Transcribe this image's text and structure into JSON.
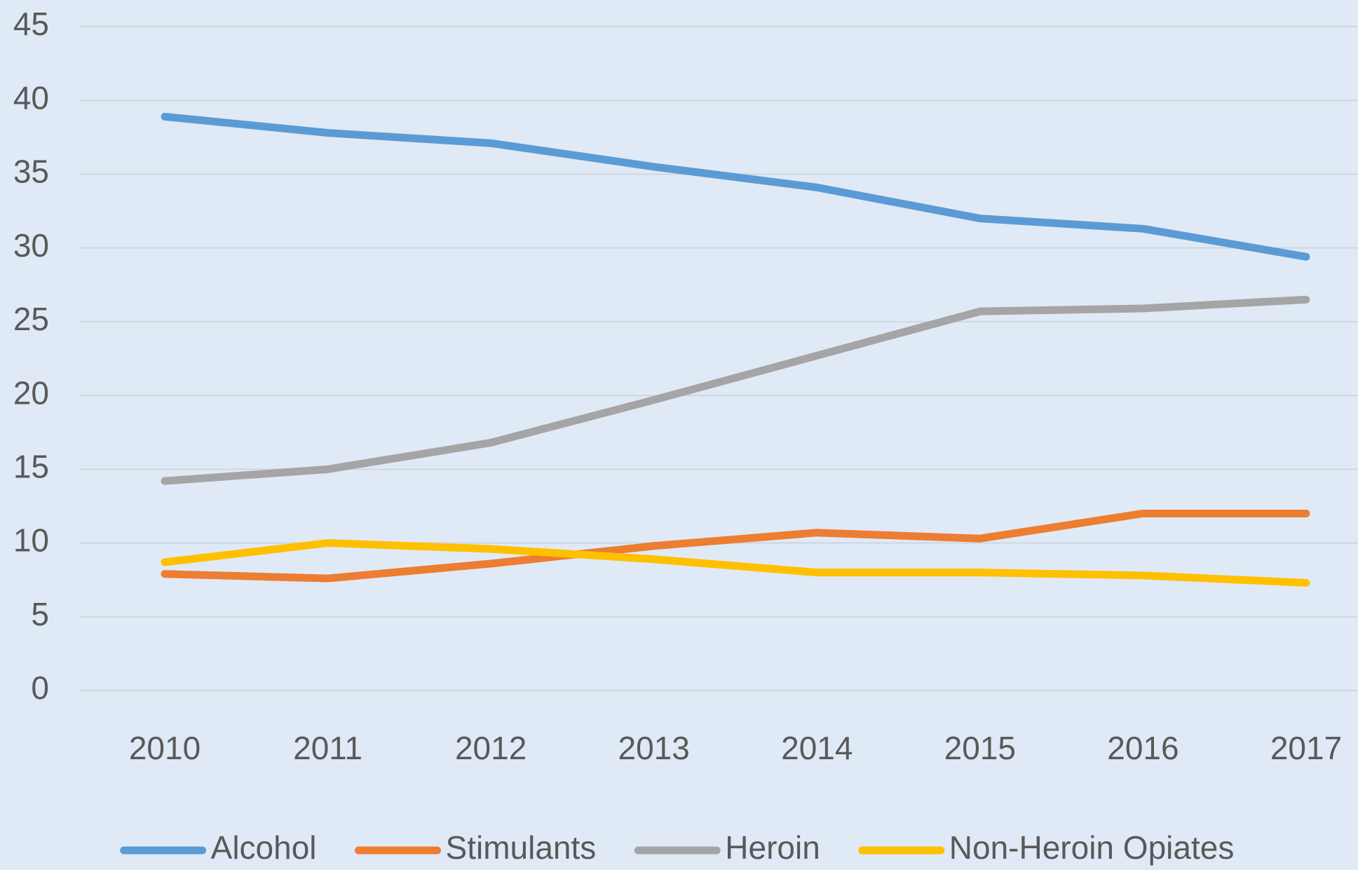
{
  "chart_data": {
    "type": "line",
    "categories": [
      "2010",
      "2011",
      "2012",
      "2013",
      "2014",
      "2015",
      "2016",
      "2017"
    ],
    "series": [
      {
        "name": "Alcohol",
        "color": "#5b9bd5",
        "values": [
          38.9,
          37.8,
          37.1,
          35.5,
          34.1,
          32.0,
          31.3,
          29.4
        ]
      },
      {
        "name": "Stimulants",
        "color": "#ed7d31",
        "values": [
          7.9,
          7.6,
          8.6,
          9.8,
          10.7,
          10.3,
          12.0,
          12.0
        ]
      },
      {
        "name": "Heroin",
        "color": "#a5a5a5",
        "values": [
          14.2,
          15.0,
          16.8,
          19.7,
          22.7,
          25.7,
          25.9,
          26.5
        ]
      },
      {
        "name": "Non-Heroin Opiates",
        "color": "#ffc000",
        "values": [
          8.7,
          10.0,
          9.6,
          8.9,
          8.0,
          8.0,
          7.8,
          7.3
        ]
      }
    ],
    "ylim": [
      0,
      45
    ],
    "yticks": [
      0,
      5,
      10,
      15,
      20,
      25,
      30,
      35,
      40,
      45
    ],
    "grid": true,
    "legend": "bottom"
  }
}
